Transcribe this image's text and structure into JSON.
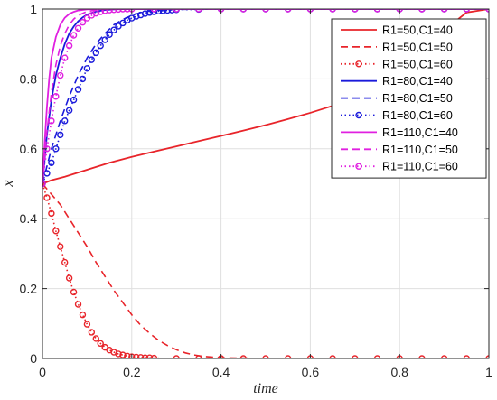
{
  "chart_data": {
    "type": "line",
    "xlabel": "time",
    "ylabel": "x",
    "xlim": [
      0,
      1
    ],
    "ylim": [
      0,
      1
    ],
    "xticks": [
      0,
      0.2,
      0.4,
      0.6,
      0.8,
      1
    ],
    "yticks": [
      0,
      0.2,
      0.4,
      0.6,
      0.8,
      1
    ],
    "xtick_labels": [
      "0",
      "0.2",
      "0.4",
      "0.6",
      "0.8",
      "1"
    ],
    "ytick_labels": [
      "0",
      "0.2",
      "0.4",
      "0.6",
      "0.8",
      "1"
    ],
    "grid": true,
    "legend_position": "top-right",
    "series": [
      {
        "name": "R1=50,C1=40",
        "color": "#e8242a",
        "style": "solid",
        "marker": "none",
        "x": [
          0,
          0.02,
          0.05,
          0.1,
          0.15,
          0.2,
          0.25,
          0.3,
          0.35,
          0.4,
          0.45,
          0.5,
          0.55,
          0.6,
          0.65,
          0.7,
          0.75,
          0.8,
          0.85,
          0.9,
          0.95,
          1.0
        ],
        "y": [
          0.5,
          0.51,
          0.52,
          0.54,
          0.56,
          0.577,
          0.592,
          0.607,
          0.622,
          0.637,
          0.652,
          0.668,
          0.685,
          0.703,
          0.723,
          0.748,
          0.778,
          0.818,
          0.87,
          0.94,
          0.99,
          1.0
        ]
      },
      {
        "name": "R1=50,C1=50",
        "color": "#e8242a",
        "style": "dashed",
        "marker": "none",
        "x": [
          0,
          0.02,
          0.04,
          0.06,
          0.08,
          0.1,
          0.12,
          0.14,
          0.16,
          0.18,
          0.2,
          0.22,
          0.24,
          0.26,
          0.28,
          0.3,
          0.32,
          0.34,
          0.36,
          0.38,
          0.4,
          0.45,
          0.5,
          0.6,
          0.7,
          0.8,
          0.9,
          1.0
        ],
        "y": [
          0.5,
          0.47,
          0.44,
          0.4,
          0.36,
          0.32,
          0.275,
          0.235,
          0.195,
          0.16,
          0.125,
          0.095,
          0.072,
          0.052,
          0.037,
          0.025,
          0.016,
          0.01,
          0.006,
          0.004,
          0.002,
          0.001,
          0.0,
          0.0,
          0.0,
          0.0,
          0.0,
          0.0
        ]
      },
      {
        "name": "R1=50,C1=60",
        "color": "#e8242a",
        "style": "dotted",
        "marker": "circle",
        "x": [
          0,
          0.01,
          0.02,
          0.03,
          0.04,
          0.05,
          0.06,
          0.07,
          0.08,
          0.09,
          0.1,
          0.11,
          0.12,
          0.13,
          0.14,
          0.15,
          0.16,
          0.17,
          0.18,
          0.19,
          0.2,
          0.21,
          0.22,
          0.23,
          0.24,
          0.25,
          0.3,
          0.35,
          0.4,
          0.45,
          0.5,
          0.55,
          0.6,
          0.65,
          0.7,
          0.75,
          0.8,
          0.85,
          0.9,
          0.95,
          1.0
        ],
        "y": [
          0.5,
          0.46,
          0.415,
          0.365,
          0.32,
          0.275,
          0.23,
          0.19,
          0.155,
          0.125,
          0.098,
          0.075,
          0.057,
          0.043,
          0.032,
          0.024,
          0.018,
          0.013,
          0.01,
          0.007,
          0.005,
          0.004,
          0.003,
          0.002,
          0.002,
          0.001,
          0.0,
          0.0,
          0.0,
          0.0,
          0.0,
          0.0,
          0.0,
          0.0,
          0.0,
          0.0,
          0.0,
          0.0,
          0.0,
          0.0,
          0.0
        ]
      },
      {
        "name": "R1=80,C1=40",
        "color": "#1a1adb",
        "style": "solid",
        "marker": "none",
        "x": [
          0,
          0.01,
          0.02,
          0.03,
          0.04,
          0.05,
          0.06,
          0.07,
          0.08,
          0.09,
          0.1,
          0.11,
          0.12,
          0.14,
          0.16,
          0.18,
          0.2,
          0.25,
          0.3,
          0.5,
          0.7,
          1.0
        ],
        "y": [
          0.5,
          0.64,
          0.74,
          0.81,
          0.86,
          0.9,
          0.93,
          0.95,
          0.965,
          0.976,
          0.984,
          0.989,
          0.993,
          0.997,
          0.999,
          1.0,
          1.0,
          1.0,
          1.0,
          1.0,
          1.0,
          1.0
        ]
      },
      {
        "name": "R1=80,C1=50",
        "color": "#1a1adb",
        "style": "dashed",
        "marker": "none",
        "x": [
          0,
          0.02,
          0.04,
          0.06,
          0.08,
          0.1,
          0.12,
          0.14,
          0.16,
          0.18,
          0.2,
          0.22,
          0.25,
          0.3,
          0.4,
          0.5,
          0.7,
          1.0
        ],
        "y": [
          0.5,
          0.6,
          0.68,
          0.75,
          0.81,
          0.86,
          0.9,
          0.93,
          0.955,
          0.97,
          0.982,
          0.99,
          0.996,
          0.999,
          1.0,
          1.0,
          1.0,
          1.0
        ]
      },
      {
        "name": "R1=80,C1=60",
        "color": "#1a1adb",
        "style": "dotted",
        "marker": "circle",
        "x": [
          0,
          0.01,
          0.02,
          0.03,
          0.04,
          0.05,
          0.06,
          0.07,
          0.08,
          0.09,
          0.1,
          0.11,
          0.12,
          0.13,
          0.14,
          0.15,
          0.16,
          0.17,
          0.18,
          0.19,
          0.2,
          0.21,
          0.22,
          0.23,
          0.24,
          0.25,
          0.26,
          0.27,
          0.28,
          0.29,
          0.3,
          0.35,
          0.4,
          0.45,
          0.5,
          0.55,
          0.6,
          0.65,
          0.7,
          0.75,
          0.8,
          0.85,
          0.9,
          0.95,
          1.0
        ],
        "y": [
          0.5,
          0.53,
          0.56,
          0.6,
          0.64,
          0.68,
          0.71,
          0.74,
          0.77,
          0.8,
          0.83,
          0.855,
          0.875,
          0.895,
          0.912,
          0.927,
          0.94,
          0.951,
          0.96,
          0.968,
          0.974,
          0.979,
          0.983,
          0.987,
          0.99,
          0.992,
          0.994,
          0.995,
          0.996,
          0.997,
          0.998,
          0.999,
          1.0,
          1.0,
          1.0,
          1.0,
          1.0,
          1.0,
          1.0,
          1.0,
          1.0,
          1.0,
          1.0,
          1.0,
          1.0
        ]
      },
      {
        "name": "R1=110,C1=40",
        "color": "#e020e0",
        "style": "solid",
        "marker": "none",
        "x": [
          0,
          0.005,
          0.01,
          0.015,
          0.02,
          0.03,
          0.04,
          0.05,
          0.06,
          0.07,
          0.08,
          0.1,
          0.12,
          0.15,
          0.2,
          0.3,
          0.5,
          1.0
        ],
        "y": [
          0.5,
          0.62,
          0.72,
          0.8,
          0.86,
          0.92,
          0.955,
          0.975,
          0.986,
          0.992,
          0.996,
          0.999,
          1.0,
          1.0,
          1.0,
          1.0,
          1.0,
          1.0
        ]
      },
      {
        "name": "R1=110,C1=50",
        "color": "#e020e0",
        "style": "dashed",
        "marker": "none",
        "x": [
          0,
          0.01,
          0.02,
          0.03,
          0.04,
          0.05,
          0.06,
          0.07,
          0.08,
          0.1,
          0.12,
          0.14,
          0.16,
          0.2,
          0.3,
          0.5,
          1.0
        ],
        "y": [
          0.5,
          0.65,
          0.76,
          0.84,
          0.895,
          0.93,
          0.955,
          0.971,
          0.982,
          0.993,
          0.997,
          0.999,
          1.0,
          1.0,
          1.0,
          1.0,
          1.0
        ]
      },
      {
        "name": "R1=110,C1=60",
        "color": "#e020e0",
        "style": "dotted",
        "marker": "circle",
        "x": [
          0,
          0.01,
          0.02,
          0.03,
          0.04,
          0.05,
          0.06,
          0.07,
          0.08,
          0.09,
          0.1,
          0.11,
          0.12,
          0.13,
          0.14,
          0.15,
          0.16,
          0.17,
          0.18,
          0.19,
          0.2,
          0.25,
          0.3,
          0.35,
          0.4,
          0.45,
          0.5,
          0.55,
          0.6,
          0.65,
          0.7,
          0.75,
          0.8,
          0.85,
          0.9,
          0.95,
          1.0
        ],
        "y": [
          0.5,
          0.6,
          0.68,
          0.75,
          0.81,
          0.86,
          0.895,
          0.925,
          0.945,
          0.962,
          0.974,
          0.982,
          0.988,
          0.992,
          0.995,
          0.997,
          0.998,
          0.999,
          1.0,
          1.0,
          1.0,
          1.0,
          1.0,
          1.0,
          1.0,
          1.0,
          1.0,
          1.0,
          1.0,
          1.0,
          1.0,
          1.0,
          1.0,
          1.0,
          1.0,
          1.0,
          1.0
        ]
      }
    ]
  }
}
